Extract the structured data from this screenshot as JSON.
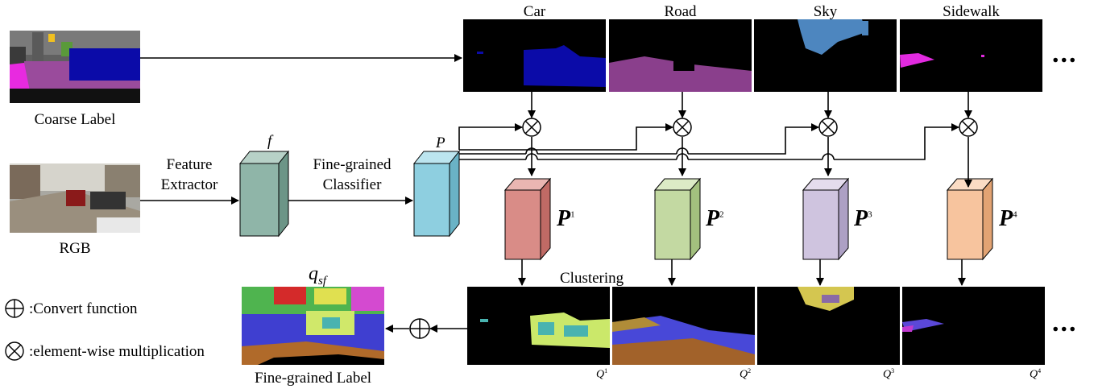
{
  "labels": {
    "coarse_label": "Coarse Label",
    "rgb": "RGB",
    "feature_extractor_line1": "Feature",
    "feature_extractor_line2": "Extractor",
    "classifier_line1": "Fine-grained",
    "classifier_line2": "Classifier",
    "f_symbol": "f",
    "p_symbol": "P",
    "clustering": "Clustering",
    "qsf_base": "q",
    "qsf_sub": "sf",
    "fine_grained_label": "Fine-grained Label",
    "ellipsis": "..."
  },
  "classes": [
    {
      "name": "Car",
      "p": "P",
      "p_sup": "1",
      "q": "Q",
      "q_sup": "1"
    },
    {
      "name": "Road",
      "p": "P",
      "p_sup": "2",
      "q": "Q",
      "q_sup": "2"
    },
    {
      "name": "Sky",
      "p": "P",
      "p_sup": "3",
      "q": "Q",
      "q_sup": "3"
    },
    {
      "name": "Sidewalk",
      "p": "P",
      "p_sup": "4",
      "q": "Q",
      "q_sup": "4"
    }
  ],
  "legend": {
    "convert": ":Convert function",
    "multiply": ":element-wise multiplication"
  },
  "colors": {
    "feature_cube": "#8fb5a8",
    "classifier_cube": "#8ecfe0",
    "p1": "#d98c87",
    "p2": "#c3d9a2",
    "p3": "#cfc4df",
    "p4": "#f7c49e",
    "car_mask": "#0b0ba8",
    "road_mask": "#8a3f8c",
    "sky_mask": "#4d86bf",
    "sidewalk_mask": "#e22ae0"
  }
}
